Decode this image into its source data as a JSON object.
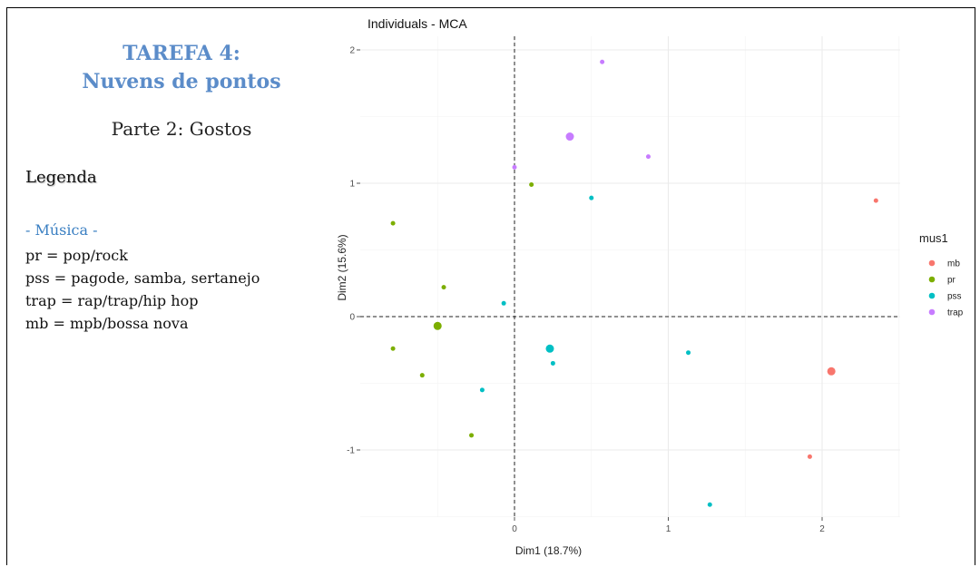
{
  "panel": {
    "title_line1": "TAREFA 4:",
    "title_line2": "Nuvens de pontos",
    "subtitle": "Parte 2: Gostos",
    "legend_heading": "Legenda",
    "music_heading": "- Música -",
    "legend_lines": [
      "pr = pop/rock",
      "pss = pagode, samba, sertanejo",
      "trap = rap/trap/hip hop",
      "mb = mpb/bossa nova"
    ]
  },
  "chart_data": {
    "type": "scatter",
    "title": "Individuals - MCA",
    "xlabel": "Dim1 (18.7%)",
    "ylabel": "Dim2 (15.6%)",
    "xlim": [
      -0.8,
      2.5
    ],
    "ylim": [
      -1.6,
      2.05
    ],
    "xticks": [
      0,
      1,
      2
    ],
    "yticks": [
      -1,
      0,
      1,
      2
    ],
    "grid": true,
    "reference_lines": {
      "x": 0,
      "y": 0
    },
    "legend": {
      "title": "mus1",
      "placement": "right"
    },
    "series": [
      {
        "name": "mb",
        "color": "#f8766d",
        "points": [
          {
            "x": 2.35,
            "y": 0.87
          },
          {
            "x": 2.06,
            "y": -0.41,
            "centroid": true
          },
          {
            "x": 1.92,
            "y": -1.05
          }
        ]
      },
      {
        "name": "pr",
        "color": "#7cae00",
        "points": [
          {
            "x": -0.79,
            "y": 0.7
          },
          {
            "x": 0.11,
            "y": 0.99
          },
          {
            "x": -0.46,
            "y": 0.22
          },
          {
            "x": -0.5,
            "y": -0.07,
            "centroid": true
          },
          {
            "x": -0.79,
            "y": -0.24
          },
          {
            "x": -0.6,
            "y": -0.44
          },
          {
            "x": -0.28,
            "y": -0.89
          }
        ]
      },
      {
        "name": "pss",
        "color": "#00bfc4",
        "points": [
          {
            "x": 0.5,
            "y": 0.89
          },
          {
            "x": -0.07,
            "y": 0.1
          },
          {
            "x": 0.23,
            "y": -0.24,
            "centroid": true
          },
          {
            "x": 0.25,
            "y": -0.35
          },
          {
            "x": 1.13,
            "y": -0.27
          },
          {
            "x": -0.21,
            "y": -0.55
          },
          {
            "x": 1.27,
            "y": -1.41
          }
        ]
      },
      {
        "name": "trap",
        "color": "#c77cff",
        "points": [
          {
            "x": 0.57,
            "y": 1.91
          },
          {
            "x": 0.36,
            "y": 1.35,
            "centroid": true
          },
          {
            "x": 0.87,
            "y": 1.2
          },
          {
            "x": 0.0,
            "y": 1.12
          }
        ]
      }
    ]
  }
}
